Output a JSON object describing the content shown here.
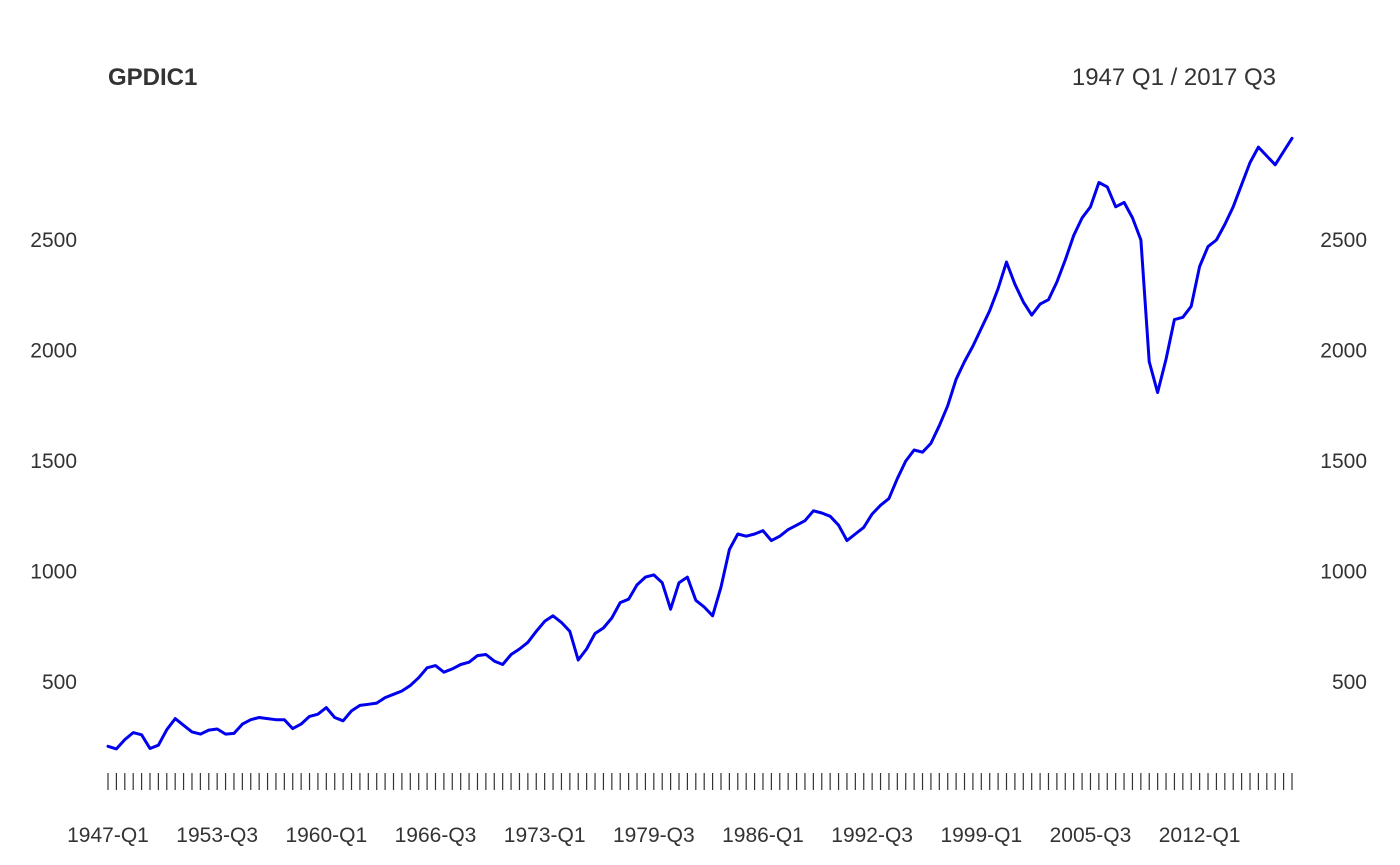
{
  "chart_data": {
    "type": "line",
    "title": "GPDIC1",
    "date_range_label": "1947 Q1 / 2017 Q3",
    "frequency": "quarterly",
    "line_color": "#0000ee",
    "grid": false,
    "ylim": [
      80,
      3020
    ],
    "yticks": [
      500,
      1000,
      1500,
      2000,
      2500
    ],
    "xtick_labels": [
      "1947-Q1",
      "1953-Q3",
      "1960-Q1",
      "1966-Q3",
      "1973-Q1",
      "1979-Q3",
      "1986-Q1",
      "1992-Q3",
      "1999-Q1",
      "2005-Q3",
      "2012-Q1"
    ],
    "series": [
      {
        "start": "1947-Q1",
        "end": "2017-Q3",
        "points": [
          [
            "1947-Q1",
            210
          ],
          [
            "1947-Q3",
            198
          ],
          [
            "1948-Q1",
            240
          ],
          [
            "1948-Q3",
            272
          ],
          [
            "1949-Q1",
            262
          ],
          [
            "1949-Q3",
            200
          ],
          [
            "1950-Q1",
            215
          ],
          [
            "1950-Q3",
            285
          ],
          [
            "1951-Q1",
            335
          ],
          [
            "1951-Q3",
            305
          ],
          [
            "1952-Q1",
            275
          ],
          [
            "1952-Q3",
            265
          ],
          [
            "1953-Q1",
            283
          ],
          [
            "1953-Q3",
            288
          ],
          [
            "1954-Q1",
            265
          ],
          [
            "1954-Q3",
            268
          ],
          [
            "1955-Q1",
            310
          ],
          [
            "1955-Q3",
            330
          ],
          [
            "1956-Q1",
            340
          ],
          [
            "1956-Q3",
            335
          ],
          [
            "1957-Q1",
            330
          ],
          [
            "1957-Q3",
            330
          ],
          [
            "1958-Q1",
            290
          ],
          [
            "1958-Q3",
            310
          ],
          [
            "1959-Q1",
            345
          ],
          [
            "1959-Q3",
            355
          ],
          [
            "1960-Q1",
            385
          ],
          [
            "1960-Q3",
            340
          ],
          [
            "1961-Q1",
            325
          ],
          [
            "1961-Q3",
            370
          ],
          [
            "1962-Q1",
            395
          ],
          [
            "1962-Q3",
            400
          ],
          [
            "1963-Q1",
            405
          ],
          [
            "1963-Q3",
            430
          ],
          [
            "1964-Q1",
            445
          ],
          [
            "1964-Q3",
            460
          ],
          [
            "1965-Q1",
            485
          ],
          [
            "1965-Q3",
            520
          ],
          [
            "1966-Q1",
            565
          ],
          [
            "1966-Q3",
            575
          ],
          [
            "1967-Q1",
            545
          ],
          [
            "1967-Q3",
            560
          ],
          [
            "1968-Q1",
            580
          ],
          [
            "1968-Q3",
            590
          ],
          [
            "1969-Q1",
            620
          ],
          [
            "1969-Q3",
            625
          ],
          [
            "1970-Q1",
            595
          ],
          [
            "1970-Q3",
            580
          ],
          [
            "1971-Q1",
            625
          ],
          [
            "1971-Q3",
            650
          ],
          [
            "1972-Q1",
            680
          ],
          [
            "1972-Q3",
            730
          ],
          [
            "1973-Q1",
            775
          ],
          [
            "1973-Q3",
            800
          ],
          [
            "1974-Q1",
            770
          ],
          [
            "1974-Q3",
            730
          ],
          [
            "1975-Q1",
            600
          ],
          [
            "1975-Q3",
            650
          ],
          [
            "1976-Q1",
            720
          ],
          [
            "1976-Q3",
            745
          ],
          [
            "1977-Q1",
            790
          ],
          [
            "1977-Q3",
            860
          ],
          [
            "1978-Q1",
            875
          ],
          [
            "1978-Q3",
            940
          ],
          [
            "1979-Q1",
            975
          ],
          [
            "1979-Q3",
            985
          ],
          [
            "1980-Q1",
            950
          ],
          [
            "1980-Q3",
            830
          ],
          [
            "1981-Q1",
            950
          ],
          [
            "1981-Q3",
            975
          ],
          [
            "1982-Q1",
            870
          ],
          [
            "1982-Q3",
            840
          ],
          [
            "1983-Q1",
            800
          ],
          [
            "1983-Q3",
            930
          ],
          [
            "1984-Q1",
            1100
          ],
          [
            "1984-Q3",
            1170
          ],
          [
            "1985-Q1",
            1160
          ],
          [
            "1985-Q3",
            1170
          ],
          [
            "1986-Q1",
            1185
          ],
          [
            "1986-Q3",
            1140
          ],
          [
            "1987-Q1",
            1160
          ],
          [
            "1987-Q3",
            1190
          ],
          [
            "1988-Q1",
            1210
          ],
          [
            "1988-Q3",
            1230
          ],
          [
            "1989-Q1",
            1275
          ],
          [
            "1989-Q3",
            1265
          ],
          [
            "1990-Q1",
            1250
          ],
          [
            "1990-Q3",
            1210
          ],
          [
            "1991-Q1",
            1140
          ],
          [
            "1991-Q3",
            1170
          ],
          [
            "1992-Q1",
            1200
          ],
          [
            "1992-Q3",
            1260
          ],
          [
            "1993-Q1",
            1300
          ],
          [
            "1993-Q3",
            1330
          ],
          [
            "1994-Q1",
            1420
          ],
          [
            "1994-Q3",
            1500
          ],
          [
            "1995-Q1",
            1550
          ],
          [
            "1995-Q3",
            1540
          ],
          [
            "1996-Q1",
            1580
          ],
          [
            "1996-Q3",
            1660
          ],
          [
            "1997-Q1",
            1750
          ],
          [
            "1997-Q3",
            1870
          ],
          [
            "1998-Q1",
            1950
          ],
          [
            "1998-Q3",
            2020
          ],
          [
            "1999-Q1",
            2100
          ],
          [
            "1999-Q3",
            2180
          ],
          [
            "2000-Q1",
            2280
          ],
          [
            "2000-Q3",
            2400
          ],
          [
            "2001-Q1",
            2300
          ],
          [
            "2001-Q3",
            2220
          ],
          [
            "2002-Q1",
            2160
          ],
          [
            "2002-Q3",
            2210
          ],
          [
            "2003-Q1",
            2230
          ],
          [
            "2003-Q3",
            2310
          ],
          [
            "2004-Q1",
            2410
          ],
          [
            "2004-Q3",
            2520
          ],
          [
            "2005-Q1",
            2600
          ],
          [
            "2005-Q3",
            2650
          ],
          [
            "2006-Q1",
            2760
          ],
          [
            "2006-Q3",
            2740
          ],
          [
            "2007-Q1",
            2650
          ],
          [
            "2007-Q3",
            2670
          ],
          [
            "2008-Q1",
            2600
          ],
          [
            "2008-Q3",
            2500
          ],
          [
            "2009-Q1",
            1950
          ],
          [
            "2009-Q3",
            1810
          ],
          [
            "2010-Q1",
            1960
          ],
          [
            "2010-Q3",
            2140
          ],
          [
            "2011-Q1",
            2150
          ],
          [
            "2011-Q3",
            2200
          ],
          [
            "2012-Q1",
            2380
          ],
          [
            "2012-Q3",
            2470
          ],
          [
            "2013-Q1",
            2500
          ],
          [
            "2013-Q3",
            2570
          ],
          [
            "2014-Q1",
            2650
          ],
          [
            "2014-Q3",
            2750
          ],
          [
            "2015-Q1",
            2850
          ],
          [
            "2015-Q3",
            2920
          ],
          [
            "2016-Q1",
            2880
          ],
          [
            "2016-Q3",
            2840
          ],
          [
            "2017-Q1",
            2900
          ],
          [
            "2017-Q3",
            2960
          ]
        ]
      }
    ]
  }
}
